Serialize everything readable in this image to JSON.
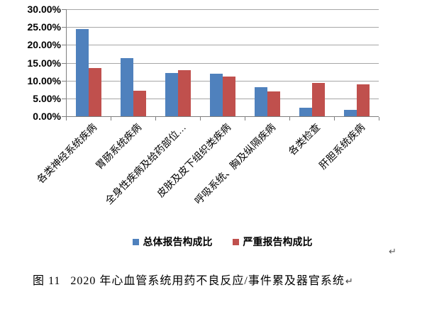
{
  "chart_data": {
    "type": "bar",
    "title": "",
    "categories": [
      "各类神经系统疾病",
      "胃肠系统疾病",
      "全身性疾病及给药部位…",
      "皮肤及皮下组织类疾病",
      "呼吸系统、胸及纵隔疾病",
      "各类检查",
      "肝胆系统疾病"
    ],
    "series": [
      {
        "name": "总体报告构成比",
        "color": "#4F81BD",
        "values": [
          24.4,
          16.3,
          12.2,
          11.9,
          8.2,
          2.4,
          1.7
        ]
      },
      {
        "name": "严重报告构成比",
        "color": "#C0504D",
        "values": [
          13.5,
          7.1,
          13.0,
          11.1,
          7.0,
          9.4,
          8.9
        ]
      }
    ],
    "xlabel": "",
    "ylabel": "",
    "ylim": [
      0,
      30
    ],
    "ytick_step": 5,
    "ytick_labels": [
      "0.00%",
      "5.00%",
      "10.00%",
      "15.00%",
      "20.00%",
      "25.00%",
      "30.00%"
    ],
    "grid": true,
    "legend_position": "bottom-center",
    "x_label_rotation_deg": 45,
    "gridline_color": "#A6A6A6",
    "axis_color": "#7F7F7F"
  },
  "caption": {
    "figure_label": "图 11",
    "text": "2020 年心血管系统用药不良反应/事件累及器官系统",
    "return_mark": "↵"
  },
  "page_marks": {
    "stray_paragraph_mark": "↵"
  }
}
